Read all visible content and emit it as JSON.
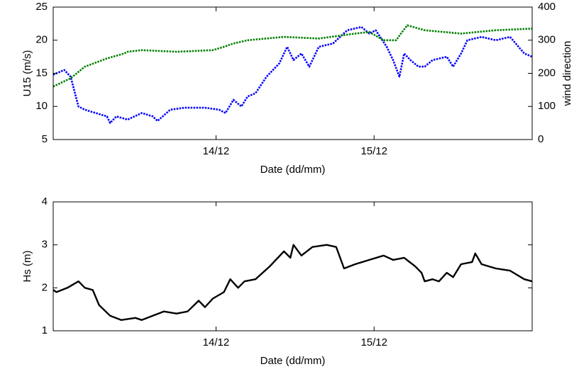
{
  "chart_data": [
    {
      "type": "line",
      "xlabel": "Date (dd/mm)",
      "ylabel": "U15 (m/s)",
      "y2label": "wind direction",
      "xlim": [
        12.97,
        16.0
      ],
      "xticks": [
        {
          "value": 14,
          "label": "14/12"
        },
        {
          "value": 15,
          "label": "15/12"
        }
      ],
      "ylim": [
        5,
        25
      ],
      "yticks": [
        5,
        10,
        15,
        20,
        25
      ],
      "y2lim": [
        0,
        400
      ],
      "y2ticks": [
        0,
        100,
        200,
        300,
        400
      ],
      "line_style": "dotted",
      "series": [
        {
          "name": "U15",
          "color": "#0000ff",
          "x": [
            12.97,
            13.04,
            13.08,
            13.13,
            13.17,
            13.31,
            13.33,
            13.37,
            13.44,
            13.53,
            13.6,
            13.63,
            13.71,
            13.8,
            13.93,
            14.02,
            14.06,
            14.11,
            14.16,
            14.2,
            14.25,
            14.32,
            14.4,
            14.45,
            14.49,
            14.54,
            14.59,
            14.65,
            14.74,
            14.83,
            14.92,
            14.97,
            15.01,
            15.08,
            15.12,
            15.16,
            15.19,
            15.23,
            15.28,
            15.32,
            15.37,
            15.46,
            15.5,
            15.55,
            15.59,
            15.68,
            15.77,
            15.86,
            15.95,
            16.0
          ],
          "values": [
            14.8,
            15.5,
            14.5,
            10,
            9.5,
            8.5,
            7.5,
            8.5,
            8,
            9,
            8.5,
            7.8,
            9.5,
            9.8,
            9.8,
            9.5,
            9,
            11,
            10,
            11.5,
            12,
            14.5,
            16.5,
            19,
            17,
            18,
            16,
            19,
            19.5,
            21.5,
            22,
            21,
            21.5,
            19,
            17,
            14.5,
            18,
            17,
            16,
            16,
            17,
            17.5,
            16,
            18,
            20,
            20.5,
            20,
            20.5,
            18,
            17.5
          ]
        },
        {
          "name": "wind direction",
          "color": "#008000",
          "axis": "y2",
          "x": [
            12.97,
            13.08,
            13.17,
            13.31,
            13.42,
            13.44,
            13.53,
            13.75,
            13.98,
            14.05,
            14.11,
            14.2,
            14.43,
            14.65,
            14.88,
            14.97,
            15.06,
            15.14,
            15.17,
            15.21,
            15.32,
            15.55,
            15.77,
            16.0
          ],
          "values": [
            160,
            185,
            220,
            245,
            260,
            265,
            270,
            265,
            270,
            280,
            290,
            300,
            310,
            305,
            320,
            325,
            300,
            300,
            320,
            345,
            330,
            320,
            330,
            335
          ]
        }
      ]
    },
    {
      "type": "line",
      "xlabel": "Date (dd/mm)",
      "ylabel": "Hs (m)",
      "xlim": [
        12.97,
        16.0
      ],
      "xticks": [
        {
          "value": 14,
          "label": "14/12"
        },
        {
          "value": 15,
          "label": "15/12"
        }
      ],
      "ylim": [
        1,
        4
      ],
      "yticks": [
        1,
        2,
        3,
        4
      ],
      "line_style": "solid",
      "series": [
        {
          "name": "Hs",
          "color": "#000000",
          "x": [
            12.97,
            12.99,
            13.06,
            13.13,
            13.17,
            13.22,
            13.26,
            13.33,
            13.4,
            13.49,
            13.53,
            13.6,
            13.67,
            13.75,
            13.82,
            13.89,
            13.93,
            13.98,
            14.05,
            14.09,
            14.14,
            14.18,
            14.25,
            14.34,
            14.43,
            14.47,
            14.49,
            14.54,
            14.61,
            14.7,
            14.76,
            14.81,
            14.88,
            14.97,
            15.06,
            15.12,
            15.19,
            15.26,
            15.3,
            15.32,
            15.37,
            15.41,
            15.46,
            15.5,
            15.55,
            15.62,
            15.64,
            15.68,
            15.77,
            15.86,
            15.95,
            16.0
          ],
          "values": [
            1.95,
            1.9,
            2.0,
            2.15,
            2.0,
            1.95,
            1.6,
            1.35,
            1.25,
            1.3,
            1.25,
            1.35,
            1.45,
            1.4,
            1.45,
            1.7,
            1.55,
            1.75,
            1.9,
            2.2,
            2.0,
            2.15,
            2.2,
            2.5,
            2.85,
            2.7,
            3.0,
            2.75,
            2.95,
            3.0,
            2.95,
            2.45,
            2.55,
            2.65,
            2.75,
            2.65,
            2.7,
            2.5,
            2.35,
            2.15,
            2.2,
            2.15,
            2.35,
            2.25,
            2.55,
            2.6,
            2.8,
            2.55,
            2.45,
            2.4,
            2.2,
            2.15
          ]
        }
      ]
    }
  ]
}
